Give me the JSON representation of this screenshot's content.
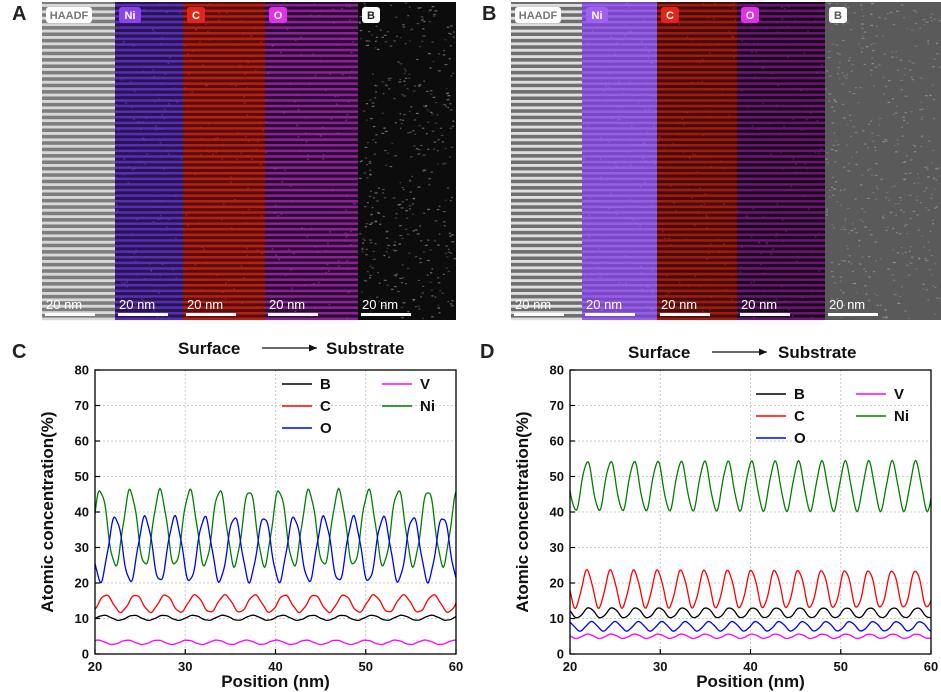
{
  "panels": {
    "A": {
      "letter": "A",
      "strips": [
        {
          "label": "HAADF",
          "scale": "20 nm",
          "kind": "haadf",
          "base": "#7d7d7d",
          "fringe": "#e8e8e8",
          "badge": "#ffffff",
          "badge_text": "#777777"
        },
        {
          "label": "Ni",
          "scale": "20 nm",
          "kind": "fringe",
          "base": "#2a1450",
          "fringe": "#6a3ae0",
          "badge": "#8a44e8",
          "badge_text": "#ffffff"
        },
        {
          "label": "C",
          "scale": "20 nm",
          "kind": "fringe",
          "base": "#5a0e0a",
          "fringe": "#d8281c",
          "badge": "#e0261a",
          "badge_text": "#ffffff"
        },
        {
          "label": "O",
          "scale": "20 nm",
          "kind": "fringe",
          "base": "#2c0c33",
          "fringe": "#b02cbc",
          "badge": "#e030e8",
          "badge_text": "#ffffff"
        },
        {
          "label": "B",
          "scale": "20 nm",
          "kind": "noise",
          "base": "#0c0c0c",
          "fringe": "#8a8a8a",
          "badge": "#ffffff",
          "badge_text": "#222222"
        }
      ]
    },
    "B": {
      "letter": "B",
      "strips": [
        {
          "label": "HAADF",
          "scale": "20 nm",
          "kind": "haadf",
          "base": "#6e6e6e",
          "fringe": "#f2f2f2",
          "badge": "#ffffff",
          "badge_text": "#777777"
        },
        {
          "label": "Ni",
          "scale": "20 nm",
          "kind": "fringe",
          "base": "#7a48c6",
          "fringe": "#a06af0",
          "badge": "#a060f0",
          "badge_text": "#ffffff"
        },
        {
          "label": "C",
          "scale": "20 nm",
          "kind": "fringe",
          "base": "#4a0c08",
          "fringe": "#c02418",
          "badge": "#e0261a",
          "badge_text": "#ffffff"
        },
        {
          "label": "O",
          "scale": "20 nm",
          "kind": "fringe",
          "base": "#1c0a1e",
          "fringe": "#8a1c96",
          "badge": "#e030e8",
          "badge_text": "#ffffff"
        },
        {
          "label": "B",
          "scale": "20 nm",
          "kind": "noise",
          "base": "#5a5a5a",
          "fringe": "#9a9a9a",
          "badge": "#ffffff",
          "badge_text": "#555555"
        }
      ]
    }
  },
  "chart_data": [
    {
      "panel": "C",
      "type": "line",
      "header_left": "Surface",
      "header_right": "Substrate",
      "xlabel": "Position (nm)",
      "ylabel": "Atomic concentration(%)",
      "xlim": [
        20,
        60
      ],
      "ylim": [
        0,
        80
      ],
      "xticks": [
        20,
        30,
        40,
        50,
        60
      ],
      "yticks": [
        0,
        10,
        20,
        30,
        40,
        50,
        60,
        70,
        80
      ],
      "grid": true,
      "legend": [
        {
          "name": "B",
          "color": "#000000"
        },
        {
          "name": "V",
          "color": "#ff00ff"
        },
        {
          "name": "C",
          "color": "#ff0000"
        },
        {
          "name": "Ni",
          "color": "#008000"
        },
        {
          "name": "O",
          "color": "#0000ff"
        }
      ],
      "series": [
        {
          "name": "Ni",
          "color": "#008000",
          "mean": 35.5,
          "amp": 10.5,
          "period": 3.3,
          "phase": 20.6
        },
        {
          "name": "O",
          "color": "#0000ff",
          "mean": 29.5,
          "amp": 9.0,
          "period": 3.3,
          "phase": 22.25
        },
        {
          "name": "C",
          "color": "#ff0000",
          "mean": 14.2,
          "amp": 2.4,
          "period": 3.3,
          "phase": 21.2
        },
        {
          "name": "B",
          "color": "#000000",
          "mean": 10.2,
          "amp": 0.7,
          "period": 3.3,
          "phase": 21.0
        },
        {
          "name": "V",
          "color": "#ff00ff",
          "mean": 3.3,
          "amp": 0.6,
          "period": 3.3,
          "phase": 20.3
        }
      ]
    },
    {
      "panel": "D",
      "type": "line",
      "header_left": "Surface",
      "header_right": "Substrate",
      "xlabel": "Position (nm)",
      "ylabel": "Atomic concentration(%)",
      "xlim": [
        20,
        60
      ],
      "ylim": [
        0,
        80
      ],
      "xticks": [
        20,
        30,
        40,
        50,
        60
      ],
      "yticks": [
        0,
        10,
        20,
        30,
        40,
        50,
        60,
        70,
        80
      ],
      "grid": true,
      "legend": [
        {
          "name": "B",
          "color": "#000000"
        },
        {
          "name": "V",
          "color": "#ff00ff"
        },
        {
          "name": "C",
          "color": "#ff0000"
        },
        {
          "name": "Ni",
          "color": "#008000"
        },
        {
          "name": "O",
          "color": "#0000ff"
        }
      ],
      "series": [
        {
          "name": "Ni",
          "color": "#008000",
          "mean": 47.3,
          "amp": 6.8,
          "period": 2.6,
          "phase": 21.9
        },
        {
          "name": "C",
          "color": "#ff0000",
          "mean": 18.3,
          "amp": 5.2,
          "period": 2.6,
          "phase": 21.9
        },
        {
          "name": "B",
          "color": "#000000",
          "mean": 11.6,
          "amp": 1.4,
          "period": 2.6,
          "phase": 22.1
        },
        {
          "name": "O",
          "color": "#0000ff",
          "mean": 7.8,
          "amp": 1.3,
          "period": 2.6,
          "phase": 22.4
        },
        {
          "name": "V",
          "color": "#ff00ff",
          "mean": 5.0,
          "amp": 0.6,
          "period": 2.6,
          "phase": 22.0
        }
      ]
    }
  ]
}
